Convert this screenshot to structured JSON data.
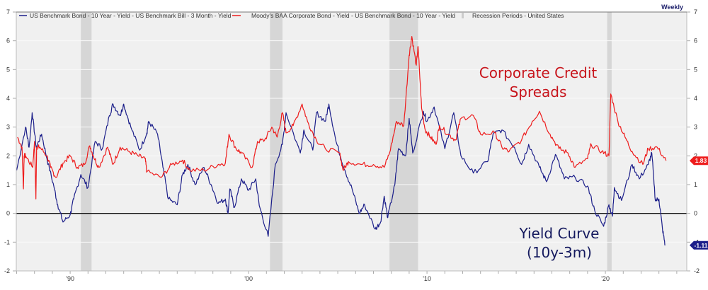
{
  "chart_data": {
    "type": "line",
    "frequency_label": "Weekly",
    "xlim": [
      1986.98,
      2024.56
    ],
    "ylim": [
      -2,
      7
    ],
    "grid": true,
    "legend_placement": "top",
    "x_ticks": [
      {
        "value": 1990,
        "label": "'90"
      },
      {
        "value": 2000,
        "label": "'00"
      },
      {
        "value": 2010,
        "label": "'10"
      },
      {
        "value": 2020,
        "label": "'20"
      }
    ],
    "y_ticks": [
      -2,
      -1,
      0,
      1,
      2,
      3,
      4,
      5,
      6,
      7
    ],
    "legend": [
      "US Benchmark Bond - 10 Year - Yield - US Benchmark Bill - 3 Month - Yield",
      "Moody's BAA Corporate Bond - Yield - US Benchmark Bond - 10 Year - Yield",
      "Recession Periods - United States"
    ],
    "annotations": {
      "credit": [
        "Corporate Credit",
        "Spreads"
      ],
      "curve": [
        "Yield Curve",
        "(10y-3m)"
      ]
    },
    "recessions": [
      [
        1990.6,
        1991.2
      ],
      [
        2001.2,
        2001.9
      ],
      [
        2007.9,
        2009.5
      ],
      [
        2020.1,
        2020.35
      ]
    ],
    "series": [
      {
        "key": "curve",
        "color": "#1c1f8a",
        "last_value": "-1.11",
        "x": [
          1987.0,
          1987.5,
          1987.7,
          1987.87,
          1988.1,
          1988.4,
          1988.7,
          1989.1,
          1989.3,
          1989.6,
          1990.0,
          1990.2,
          1990.6,
          1991.0,
          1991.4,
          1991.8,
          1992.2,
          1992.4,
          1992.8,
          1993.0,
          1993.4,
          1993.9,
          1994.3,
          1994.4,
          1994.9,
          1995.2,
          1995.5,
          1996.0,
          1996.3,
          1996.6,
          1997.0,
          1997.5,
          1997.9,
          1998.3,
          1998.7,
          1998.85,
          1998.95,
          1999.2,
          1999.6,
          2000.0,
          2000.4,
          2000.6,
          2001.1,
          2001.5,
          2001.9,
          2002.1,
          2002.9,
          2003.1,
          2003.6,
          2003.8,
          2004.3,
          2004.5,
          2004.9,
          2005.4,
          2005.8,
          2006.2,
          2006.5,
          2007.1,
          2007.4,
          2007.6,
          2007.8,
          2008.2,
          2008.4,
          2008.8,
          2009.0,
          2009.2,
          2009.8,
          2010.0,
          2010.4,
          2011.0,
          2011.5,
          2011.9,
          2012.6,
          2013.4,
          2013.7,
          2014.2,
          2014.9,
          2015.3,
          2015.7,
          2016.3,
          2016.7,
          2017.2,
          2017.7,
          2018.3,
          2019.0,
          2019.4,
          2019.9,
          2020.2,
          2020.4,
          2020.5,
          2020.9,
          2021.5,
          2021.9,
          2022.4,
          2022.6,
          2022.8,
          2023.0,
          2023.2,
          2023.35
        ],
        "y": [
          1.5,
          3.0,
          2.3,
          3.5,
          2.3,
          2.75,
          1.9,
          0.9,
          0.3,
          -0.3,
          -0.05,
          0.5,
          1.35,
          0.9,
          2.5,
          2.25,
          3.4,
          3.8,
          3.4,
          3.8,
          3.0,
          2.2,
          2.8,
          3.2,
          2.75,
          1.6,
          0.5,
          0.3,
          1.35,
          1.7,
          1.0,
          1.6,
          1.0,
          0.35,
          0.5,
          0.0,
          0.85,
          0.2,
          1.2,
          0.8,
          1.2,
          0.27,
          -0.8,
          1.7,
          2.4,
          3.5,
          2.1,
          2.9,
          2.2,
          3.5,
          3.2,
          3.8,
          2.5,
          1.5,
          0.85,
          0.0,
          0.3,
          -0.55,
          -0.3,
          0.6,
          -0.15,
          1.0,
          2.25,
          2.0,
          3.3,
          2.1,
          3.55,
          3.2,
          3.7,
          2.25,
          3.5,
          2.0,
          1.4,
          1.8,
          2.75,
          2.9,
          2.3,
          1.7,
          2.4,
          1.6,
          1.1,
          2.05,
          1.2,
          1.25,
          0.95,
          0.1,
          -0.45,
          0.3,
          -0.1,
          0.9,
          0.45,
          1.7,
          1.2,
          1.7,
          2.1,
          0.45,
          0.5,
          -0.55,
          -1.11
        ]
      },
      {
        "key": "credit",
        "color": "#ee1c1c",
        "last_value": "1.83",
        "x": [
          1987.05,
          1987.3,
          1987.38,
          1987.42,
          1987.5,
          1987.9,
          1988.0,
          1988.08,
          1988.12,
          1988.3,
          1988.7,
          1988.9,
          1989.2,
          1989.6,
          1990.0,
          1990.4,
          1990.8,
          1991.1,
          1991.3,
          1991.6,
          1992.1,
          1992.4,
          1992.8,
          1993.3,
          1993.8,
          1994.2,
          1994.3,
          1995.1,
          1995.7,
          1996.3,
          1996.7,
          1997.5,
          1998.3,
          1998.7,
          1998.9,
          1999.3,
          1999.6,
          2000.2,
          2000.5,
          2000.9,
          2001.3,
          2001.6,
          2001.9,
          2002.1,
          2002.5,
          2003.0,
          2003.3,
          2003.8,
          2004.3,
          2005.1,
          2005.3,
          2005.6,
          2006.3,
          2007.0,
          2007.6,
          2007.9,
          2008.3,
          2008.7,
          2009.0,
          2009.15,
          2009.4,
          2009.5,
          2009.7,
          2009.9,
          2010.2,
          2010.5,
          2010.7,
          2011.2,
          2011.6,
          2011.9,
          2012.6,
          2013.0,
          2013.8,
          2014.2,
          2014.6,
          2015.3,
          2015.9,
          2016.3,
          2016.9,
          2017.4,
          2017.9,
          2018.3,
          2019.0,
          2019.2,
          2019.8,
          2020.2,
          2020.3,
          2020.7,
          2021.1,
          2021.5,
          2022.1,
          2022.4,
          2022.9,
          2023.4
        ],
        "y": [
          2.65,
          2.3,
          0.85,
          2.0,
          2.0,
          1.6,
          2.5,
          0.5,
          2.3,
          2.3,
          2.0,
          1.6,
          1.25,
          1.75,
          2.0,
          1.6,
          1.7,
          2.35,
          2.0,
          1.6,
          2.3,
          1.7,
          2.3,
          2.15,
          2.0,
          1.9,
          1.45,
          1.25,
          1.7,
          1.85,
          1.5,
          1.5,
          1.7,
          1.75,
          2.75,
          2.25,
          2.1,
          1.6,
          2.5,
          2.55,
          3.0,
          2.65,
          3.5,
          2.8,
          3.05,
          3.8,
          3.2,
          2.55,
          2.25,
          2.1,
          1.5,
          1.8,
          1.7,
          1.7,
          1.6,
          2.1,
          3.2,
          3.05,
          5.5,
          6.15,
          5.15,
          5.8,
          3.65,
          2.9,
          2.65,
          2.4,
          3.05,
          2.75,
          2.55,
          3.3,
          3.4,
          2.75,
          2.8,
          2.3,
          2.15,
          2.55,
          3.2,
          3.55,
          2.75,
          2.25,
          2.1,
          1.6,
          1.9,
          2.4,
          2.15,
          2.0,
          4.15,
          3.2,
          2.65,
          2.15,
          1.7,
          2.25,
          2.3,
          1.83
        ]
      }
    ]
  }
}
